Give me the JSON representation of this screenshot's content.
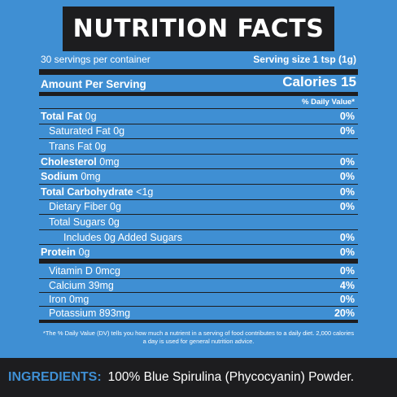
{
  "title": "NUTRITION FACTS",
  "servings_per_container": "30 servings per container",
  "serving_size": "Serving size 1 tsp (1g)",
  "amount_label": "Amount Per Serving",
  "calories": "Calories 15",
  "daily_value_header": "% Daily Value*",
  "nutrients": [
    {
      "bold": "Total Fat",
      "rest": " 0g",
      "pct": "0%"
    },
    {
      "bold": "",
      "rest": "Saturated Fat 0g",
      "pct": "0%"
    },
    {
      "bold": "",
      "rest": "Trans Fat 0g",
      "pct": ""
    },
    {
      "bold": "Cholesterol",
      "rest": " 0mg",
      "pct": "0%"
    },
    {
      "bold": "Sodium",
      "rest": " 0mg",
      "pct": "0%"
    },
    {
      "bold": "Total Carbohydrate",
      "rest": " <1g",
      "pct": "0%"
    },
    {
      "bold": "",
      "rest": "Dietary Fiber 0g",
      "pct": "0%"
    },
    {
      "bold": "",
      "rest": "Total Sugars 0g",
      "pct": ""
    },
    {
      "bold": "",
      "rest": "Includes 0g Added Sugars",
      "pct": "0%"
    },
    {
      "bold": "Protein",
      "rest": " 0g",
      "pct": "0%"
    }
  ],
  "vitamins": [
    {
      "name": "Vitamin D 0mcg",
      "pct": "0%"
    },
    {
      "name": "Calcium 39mg",
      "pct": "4%"
    },
    {
      "name": "Iron 0mg",
      "pct": "0%"
    },
    {
      "name": "Potassium 893mg",
      "pct": "20%"
    }
  ],
  "footnote": "*The % Daily Value (DV) tells you how much a nutrient in a serving of food contributes to a daily diet. 2,000 calories a day is used for general nutrition advice.",
  "ingredients_label": "INGREDIENTS:",
  "ingredients_text": "100% Blue Spirulina (Phycocyanin) Powder.",
  "colors": {
    "background": "#3f8fd3",
    "dark": "#1d1d1f",
    "text": "#ffffff"
  }
}
